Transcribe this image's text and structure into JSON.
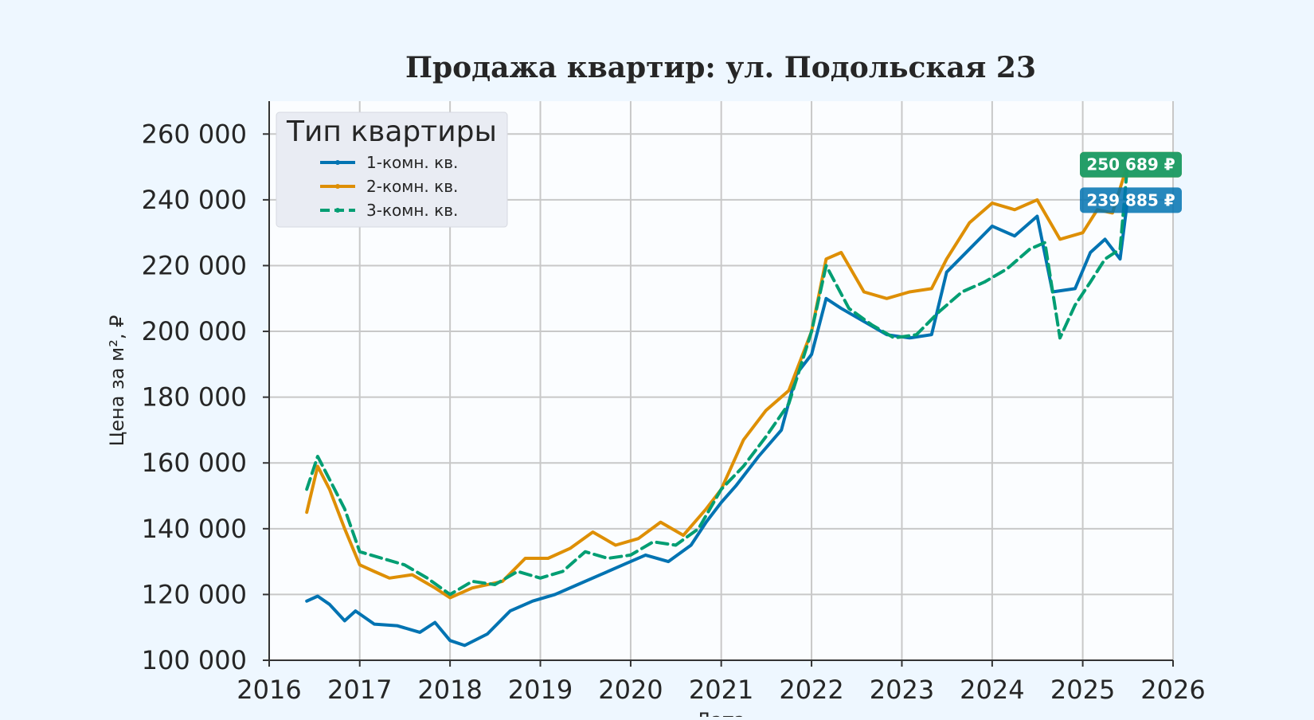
{
  "colors": {
    "page_background": "#eef7ff",
    "plot_background": "#fbfdff",
    "grid": "#c8c8c8",
    "text": "#262626"
  },
  "chart_data": {
    "type": "line",
    "title": "Продажа квартир: ул. Подольская 23",
    "xlabel": "Дата",
    "ylabel": "Цена за м², ₽",
    "xlim": [
      "2016-01-01",
      "2026-01-01"
    ],
    "ylim": [
      100000,
      270000
    ],
    "x_ticks": [
      "2016",
      "2017",
      "2018",
      "2019",
      "2020",
      "2021",
      "2022",
      "2023",
      "2024",
      "2025",
      "2026"
    ],
    "y_ticks": [
      "100 000",
      "120 000",
      "140 000",
      "160 000",
      "180 000",
      "200 000",
      "220 000",
      "240 000",
      "260 000"
    ],
    "grid": true,
    "legend": {
      "title": "Тип квартиры",
      "placement": "top-left"
    },
    "series": [
      {
        "name": "1-комн. кв.",
        "color": "#0173b2",
        "style": "solid",
        "end_label": "239 885 ₽",
        "points": [
          [
            "2016-06-01",
            118000
          ],
          [
            "2016-07-15",
            119500
          ],
          [
            "2016-09-01",
            117000
          ],
          [
            "2016-11-01",
            112000
          ],
          [
            "2016-12-15",
            115000
          ],
          [
            "2017-03-01",
            111000
          ],
          [
            "2017-06-01",
            110500
          ],
          [
            "2017-09-01",
            108500
          ],
          [
            "2017-11-01",
            111500
          ],
          [
            "2018-01-01",
            106000
          ],
          [
            "2018-03-01",
            104500
          ],
          [
            "2018-06-01",
            108000
          ],
          [
            "2018-09-01",
            115000
          ],
          [
            "2018-12-01",
            118000
          ],
          [
            "2019-03-01",
            120000
          ],
          [
            "2019-06-01",
            123000
          ],
          [
            "2019-09-01",
            126000
          ],
          [
            "2019-12-01",
            129000
          ],
          [
            "2020-03-01",
            132000
          ],
          [
            "2020-06-01",
            130000
          ],
          [
            "2020-09-01",
            135000
          ],
          [
            "2020-11-01",
            142000
          ],
          [
            "2021-01-01",
            148000
          ],
          [
            "2021-03-01",
            153000
          ],
          [
            "2021-06-01",
            162000
          ],
          [
            "2021-09-01",
            170000
          ],
          [
            "2021-11-01",
            187000
          ],
          [
            "2022-01-01",
            193000
          ],
          [
            "2022-03-01",
            210000
          ],
          [
            "2022-05-01",
            207000
          ],
          [
            "2022-08-01",
            203000
          ],
          [
            "2022-11-01",
            199000
          ],
          [
            "2023-02-01",
            198000
          ],
          [
            "2023-05-01",
            199000
          ],
          [
            "2023-07-01",
            218000
          ],
          [
            "2023-10-01",
            225000
          ],
          [
            "2024-01-01",
            232000
          ],
          [
            "2024-04-01",
            229000
          ],
          [
            "2024-07-01",
            235000
          ],
          [
            "2024-09-01",
            212000
          ],
          [
            "2024-12-01",
            213000
          ],
          [
            "2025-02-01",
            224000
          ],
          [
            "2025-04-01",
            228000
          ],
          [
            "2025-06-01",
            222000
          ],
          [
            "2025-07-01",
            239885
          ]
        ]
      },
      {
        "name": "2-комн. кв.",
        "color": "#de8f05",
        "style": "solid",
        "end_label": "250 689 ₽",
        "points": [
          [
            "2016-06-01",
            145000
          ],
          [
            "2016-07-15",
            159000
          ],
          [
            "2016-09-01",
            152000
          ],
          [
            "2016-11-01",
            140000
          ],
          [
            "2017-01-01",
            129000
          ],
          [
            "2017-03-01",
            127000
          ],
          [
            "2017-05-01",
            125000
          ],
          [
            "2017-08-01",
            126000
          ],
          [
            "2017-11-01",
            122000
          ],
          [
            "2018-01-01",
            119000
          ],
          [
            "2018-04-01",
            122000
          ],
          [
            "2018-08-01",
            124000
          ],
          [
            "2018-11-01",
            131000
          ],
          [
            "2019-02-01",
            131000
          ],
          [
            "2019-05-01",
            134000
          ],
          [
            "2019-08-01",
            139000
          ],
          [
            "2019-11-01",
            135000
          ],
          [
            "2020-02-01",
            137000
          ],
          [
            "2020-05-01",
            142000
          ],
          [
            "2020-08-01",
            138000
          ],
          [
            "2020-11-01",
            146000
          ],
          [
            "2021-01-01",
            152000
          ],
          [
            "2021-04-01",
            167000
          ],
          [
            "2021-07-01",
            176000
          ],
          [
            "2021-10-01",
            182000
          ],
          [
            "2022-01-01",
            200000
          ],
          [
            "2022-03-01",
            222000
          ],
          [
            "2022-05-01",
            224000
          ],
          [
            "2022-08-01",
            212000
          ],
          [
            "2022-11-01",
            210000
          ],
          [
            "2023-02-01",
            212000
          ],
          [
            "2023-05-01",
            213000
          ],
          [
            "2023-07-01",
            222000
          ],
          [
            "2023-10-01",
            233000
          ],
          [
            "2024-01-01",
            239000
          ],
          [
            "2024-04-01",
            237000
          ],
          [
            "2024-07-01",
            240000
          ],
          [
            "2024-10-01",
            228000
          ],
          [
            "2025-01-01",
            230000
          ],
          [
            "2025-03-01",
            237000
          ],
          [
            "2025-05-01",
            236000
          ],
          [
            "2025-07-01",
            250689
          ]
        ]
      },
      {
        "name": "3-комн. кв.",
        "color": "#029e73",
        "style": "dashed",
        "end_label": "250 689 ₽",
        "points": [
          [
            "2016-06-01",
            152000
          ],
          [
            "2016-07-15",
            162000
          ],
          [
            "2016-09-01",
            155000
          ],
          [
            "2016-11-01",
            146000
          ],
          [
            "2017-01-01",
            133000
          ],
          [
            "2017-04-01",
            131000
          ],
          [
            "2017-07-01",
            129000
          ],
          [
            "2017-10-01",
            125000
          ],
          [
            "2018-01-01",
            120000
          ],
          [
            "2018-04-01",
            124000
          ],
          [
            "2018-07-01",
            123000
          ],
          [
            "2018-10-01",
            127000
          ],
          [
            "2019-01-01",
            125000
          ],
          [
            "2019-04-01",
            127000
          ],
          [
            "2019-07-01",
            133000
          ],
          [
            "2019-10-01",
            131000
          ],
          [
            "2020-01-01",
            132000
          ],
          [
            "2020-04-01",
            136000
          ],
          [
            "2020-07-01",
            135000
          ],
          [
            "2020-10-01",
            140000
          ],
          [
            "2021-01-01",
            152000
          ],
          [
            "2021-04-01",
            159000
          ],
          [
            "2021-07-01",
            168000
          ],
          [
            "2021-10-01",
            178000
          ],
          [
            "2022-01-01",
            200000
          ],
          [
            "2022-03-01",
            220000
          ],
          [
            "2022-06-01",
            207000
          ],
          [
            "2022-09-01",
            202000
          ],
          [
            "2022-12-01",
            198000
          ],
          [
            "2023-03-01",
            199000
          ],
          [
            "2023-06-01",
            206000
          ],
          [
            "2023-09-01",
            212000
          ],
          [
            "2023-12-01",
            215000
          ],
          [
            "2024-03-01",
            219000
          ],
          [
            "2024-06-01",
            225000
          ],
          [
            "2024-08-01",
            227000
          ],
          [
            "2024-10-01",
            198000
          ],
          [
            "2024-12-01",
            208000
          ],
          [
            "2025-02-01",
            215000
          ],
          [
            "2025-04-01",
            222000
          ],
          [
            "2025-06-01",
            225000
          ],
          [
            "2025-07-01",
            250689
          ]
        ]
      }
    ]
  }
}
